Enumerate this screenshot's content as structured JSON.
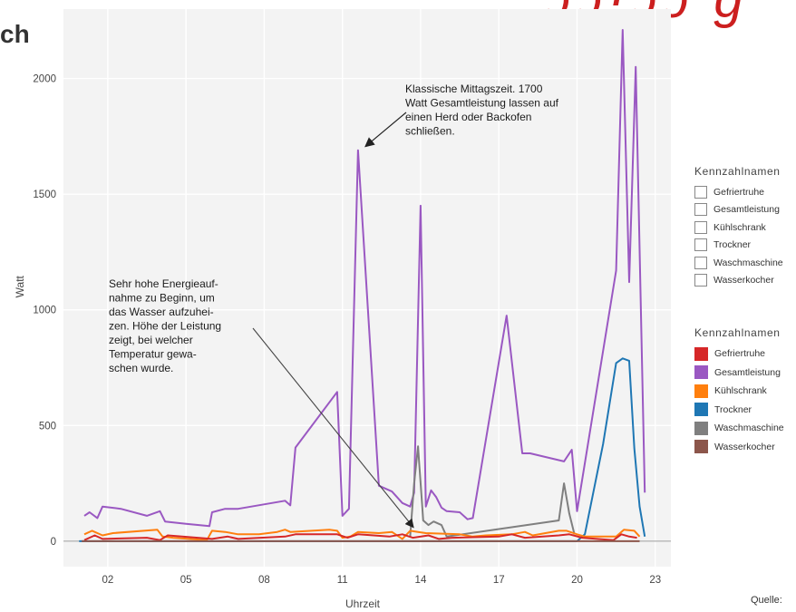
{
  "page": {
    "heading_fragment": "ch",
    "source_label": "Quelle:"
  },
  "chart_data": {
    "type": "line",
    "xlabel": "Uhrzeit",
    "ylabel": "Watt",
    "xlim": [
      0.3,
      23.6
    ],
    "ylim": [
      -110,
      2300
    ],
    "x_ticks": [
      2,
      5,
      8,
      11,
      14,
      17,
      20,
      23
    ],
    "x_tick_labels": [
      "02",
      "05",
      "08",
      "11",
      "14",
      "17",
      "20",
      "23"
    ],
    "y_ticks": [
      0,
      500,
      1000,
      1500,
      2000
    ],
    "y_tick_labels": [
      "0",
      "500",
      "1000",
      "1500",
      "2000"
    ],
    "grid": true,
    "background": "#f3f3f3",
    "series": [
      {
        "name": "Gesamtleistung",
        "color": "#9a58c2",
        "x": [
          1.1,
          1.3,
          1.6,
          1.8,
          2.5,
          3.5,
          4.0,
          4.2,
          5.0,
          5.9,
          6.0,
          6.5,
          7.0,
          8.8,
          9.0,
          9.2,
          10.8,
          11.0,
          11.25,
          11.6,
          12.4,
          12.9,
          13.3,
          13.6,
          13.75,
          14.0,
          14.2,
          14.4,
          14.6,
          14.8,
          15.0,
          15.5,
          15.8,
          16.0,
          17.3,
          17.9,
          18.2,
          19.5,
          19.8,
          20.0,
          21.5,
          21.75,
          22.0,
          22.25,
          22.6
        ],
        "y": [
          110,
          125,
          100,
          150,
          140,
          110,
          130,
          85,
          75,
          65,
          125,
          140,
          140,
          175,
          155,
          405,
          645,
          110,
          140,
          1690,
          240,
          215,
          165,
          150,
          210,
          1450,
          150,
          220,
          190,
          145,
          130,
          125,
          95,
          100,
          975,
          380,
          380,
          345,
          395,
          130,
          1170,
          2210,
          1120,
          2050,
          210
        ]
      },
      {
        "name": "Waschmaschine",
        "color": "#7f7f7f",
        "x": [
          13.6,
          13.75,
          13.9,
          14.1,
          14.3,
          14.5,
          14.8,
          15.0,
          19.3,
          19.5,
          19.7,
          19.9
        ],
        "y": [
          20,
          250,
          410,
          90,
          70,
          85,
          70,
          20,
          90,
          250,
          120,
          30
        ]
      },
      {
        "name": "Trockner",
        "color": "#1f77b4",
        "x": [
          0.9,
          3.0,
          6.0,
          9.0,
          12.0,
          15.0,
          18.0,
          20.0,
          20.3,
          21.0,
          21.5,
          21.75,
          22.0,
          22.2,
          22.4,
          22.6
        ],
        "y": [
          0,
          0,
          0,
          0,
          0,
          0,
          0,
          0,
          30,
          420,
          770,
          790,
          780,
          400,
          150,
          20
        ]
      },
      {
        "name": "Kühlschrank",
        "color": "#ff7f0e",
        "x": [
          1.1,
          1.4,
          1.8,
          2.2,
          3.9,
          4.1,
          4.5,
          5.8,
          6.0,
          6.5,
          7.0,
          7.8,
          8.5,
          8.8,
          9.0,
          10.5,
          10.8,
          11.0,
          11.3,
          11.6,
          12.4,
          12.9,
          13.3,
          13.6,
          13.9,
          14.2,
          15.5,
          16.0,
          16.5,
          17.5,
          18.0,
          18.3,
          19.3,
          19.6,
          20.0,
          20.3,
          21.5,
          21.8,
          22.2,
          22.4
        ],
        "y": [
          30,
          45,
          25,
          35,
          50,
          20,
          15,
          5,
          45,
          40,
          30,
          30,
          40,
          50,
          40,
          50,
          45,
          15,
          20,
          40,
          35,
          40,
          10,
          45,
          40,
          35,
          30,
          20,
          25,
          30,
          40,
          25,
          45,
          45,
          30,
          20,
          20,
          50,
          45,
          20
        ]
      },
      {
        "name": "Gefriertruhe",
        "color": "#d62728",
        "x": [
          1.1,
          1.5,
          1.8,
          3.5,
          4.0,
          4.3,
          6.0,
          6.6,
          7.0,
          8.8,
          9.2,
          10.8,
          11.2,
          11.6,
          12.8,
          13.3,
          13.7,
          14.3,
          14.7,
          15.2,
          17.0,
          17.5,
          18.0,
          19.3,
          19.7,
          20.2,
          21.4,
          21.7,
          22.0,
          22.3
        ],
        "y": [
          5,
          25,
          10,
          15,
          5,
          25,
          10,
          20,
          10,
          20,
          30,
          30,
          15,
          30,
          20,
          30,
          15,
          25,
          10,
          15,
          20,
          30,
          15,
          25,
          30,
          15,
          5,
          30,
          20,
          15
        ]
      },
      {
        "name": "Wasserkocher",
        "color": "#8c564b",
        "x": [
          1.0,
          5.0,
          10.0,
          15.0,
          20.0,
          21.8,
          22.4
        ],
        "y": [
          0,
          0,
          0,
          0,
          0,
          0,
          0
        ]
      }
    ],
    "annotations": [
      {
        "text_lines": [
          "Klassische Mittagszeit. 1700",
          "Watt Gesamtleistung lassen auf",
          "einen Herd oder Backofen",
          "schließen."
        ],
        "arrow_to": [
          11.6,
          1690
        ]
      },
      {
        "text_lines": [
          "Sehr hohe Energieauf-",
          "nahme zu Beginn, um",
          "das Wasser aufzuhei-",
          "zen. Höhe der Leistung",
          "zeigt, bei welcher",
          "Temperatur gewa-",
          "schen wurde."
        ],
        "arrow_to": [
          13.9,
          130
        ]
      }
    ],
    "legends": [
      {
        "title": "Kennzahlnamen",
        "style": "outline",
        "entries": [
          "Gefriertruhe",
          "Gesamtleistung",
          "Kühlschrank",
          "Trockner",
          "Waschmaschine",
          "Wasserkocher"
        ]
      },
      {
        "title": "Kennzahlnamen",
        "style": "filled",
        "entries": [
          {
            "label": "Gefriertruhe",
            "color": "#d62728"
          },
          {
            "label": "Gesamtleistung",
            "color": "#9a58c2"
          },
          {
            "label": "Kühlschrank",
            "color": "#ff7f0e"
          },
          {
            "label": "Trockner",
            "color": "#1f77b4"
          },
          {
            "label": "Waschmaschine",
            "color": "#7f7f7f"
          },
          {
            "label": "Wasserkocher",
            "color": "#8c564b"
          }
        ]
      }
    ]
  }
}
